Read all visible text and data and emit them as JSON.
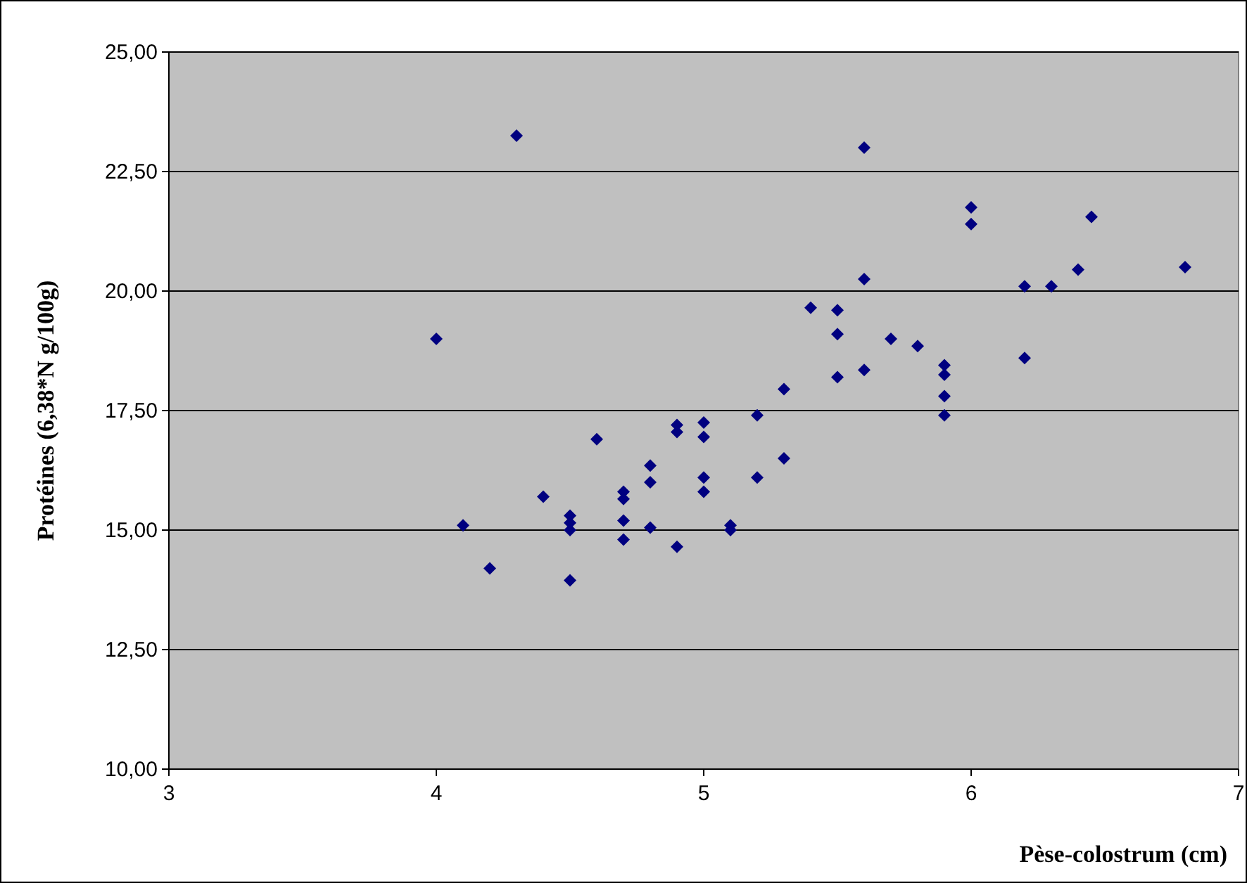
{
  "chart_data": {
    "type": "scatter",
    "xlabel": "Pèse-colostrum (cm)",
    "ylabel": "Protéines (6,38*N g/100g)",
    "xlim": [
      3,
      7
    ],
    "xticks": [
      3,
      4,
      5,
      6,
      7
    ],
    "ylim": [
      10,
      25
    ],
    "yticks": [
      {
        "value": 10,
        "label": "10,00"
      },
      {
        "value": 12.5,
        "label": "12,50"
      },
      {
        "value": 15,
        "label": "15,00"
      },
      {
        "value": 17.5,
        "label": "17,50"
      },
      {
        "value": 20,
        "label": "20,00"
      },
      {
        "value": 22.5,
        "label": "22,50"
      },
      {
        "value": 25,
        "label": "25,00"
      }
    ],
    "grid": "y",
    "marker": "diamond",
    "series": [
      {
        "color": "#000080",
        "x": [
          4.0,
          4.3,
          5.6,
          5.6,
          5.4,
          5.5,
          5.5,
          5.7,
          5.8,
          6.0,
          6.0,
          6.45,
          6.4,
          6.8,
          6.2,
          6.3,
          5.9,
          5.9,
          5.9,
          5.9,
          6.2,
          5.6,
          5.5,
          5.3,
          5.2,
          5.3,
          5.0,
          5.0,
          5.2,
          4.9,
          4.9,
          4.6,
          4.8,
          4.8,
          5.0,
          5.0,
          4.4,
          4.7,
          4.7,
          4.1,
          4.5,
          4.5,
          4.5,
          4.7,
          4.8,
          4.7,
          5.1,
          5.1,
          4.9,
          4.2,
          4.5
        ],
        "values": [
          19.0,
          23.25,
          23.0,
          20.25,
          19.65,
          19.6,
          19.1,
          19.0,
          18.85,
          21.75,
          21.4,
          21.55,
          20.45,
          20.5,
          20.1,
          20.1,
          18.45,
          18.25,
          17.8,
          17.4,
          18.6,
          18.35,
          18.2,
          17.95,
          17.4,
          16.5,
          17.25,
          16.95,
          16.1,
          17.2,
          17.05,
          16.9,
          16.35,
          16.0,
          16.1,
          15.8,
          15.7,
          15.8,
          15.65,
          15.1,
          15.3,
          15.15,
          15.0,
          15.2,
          15.05,
          14.8,
          15.1,
          15.0,
          14.65,
          14.2,
          13.95
        ]
      }
    ]
  }
}
